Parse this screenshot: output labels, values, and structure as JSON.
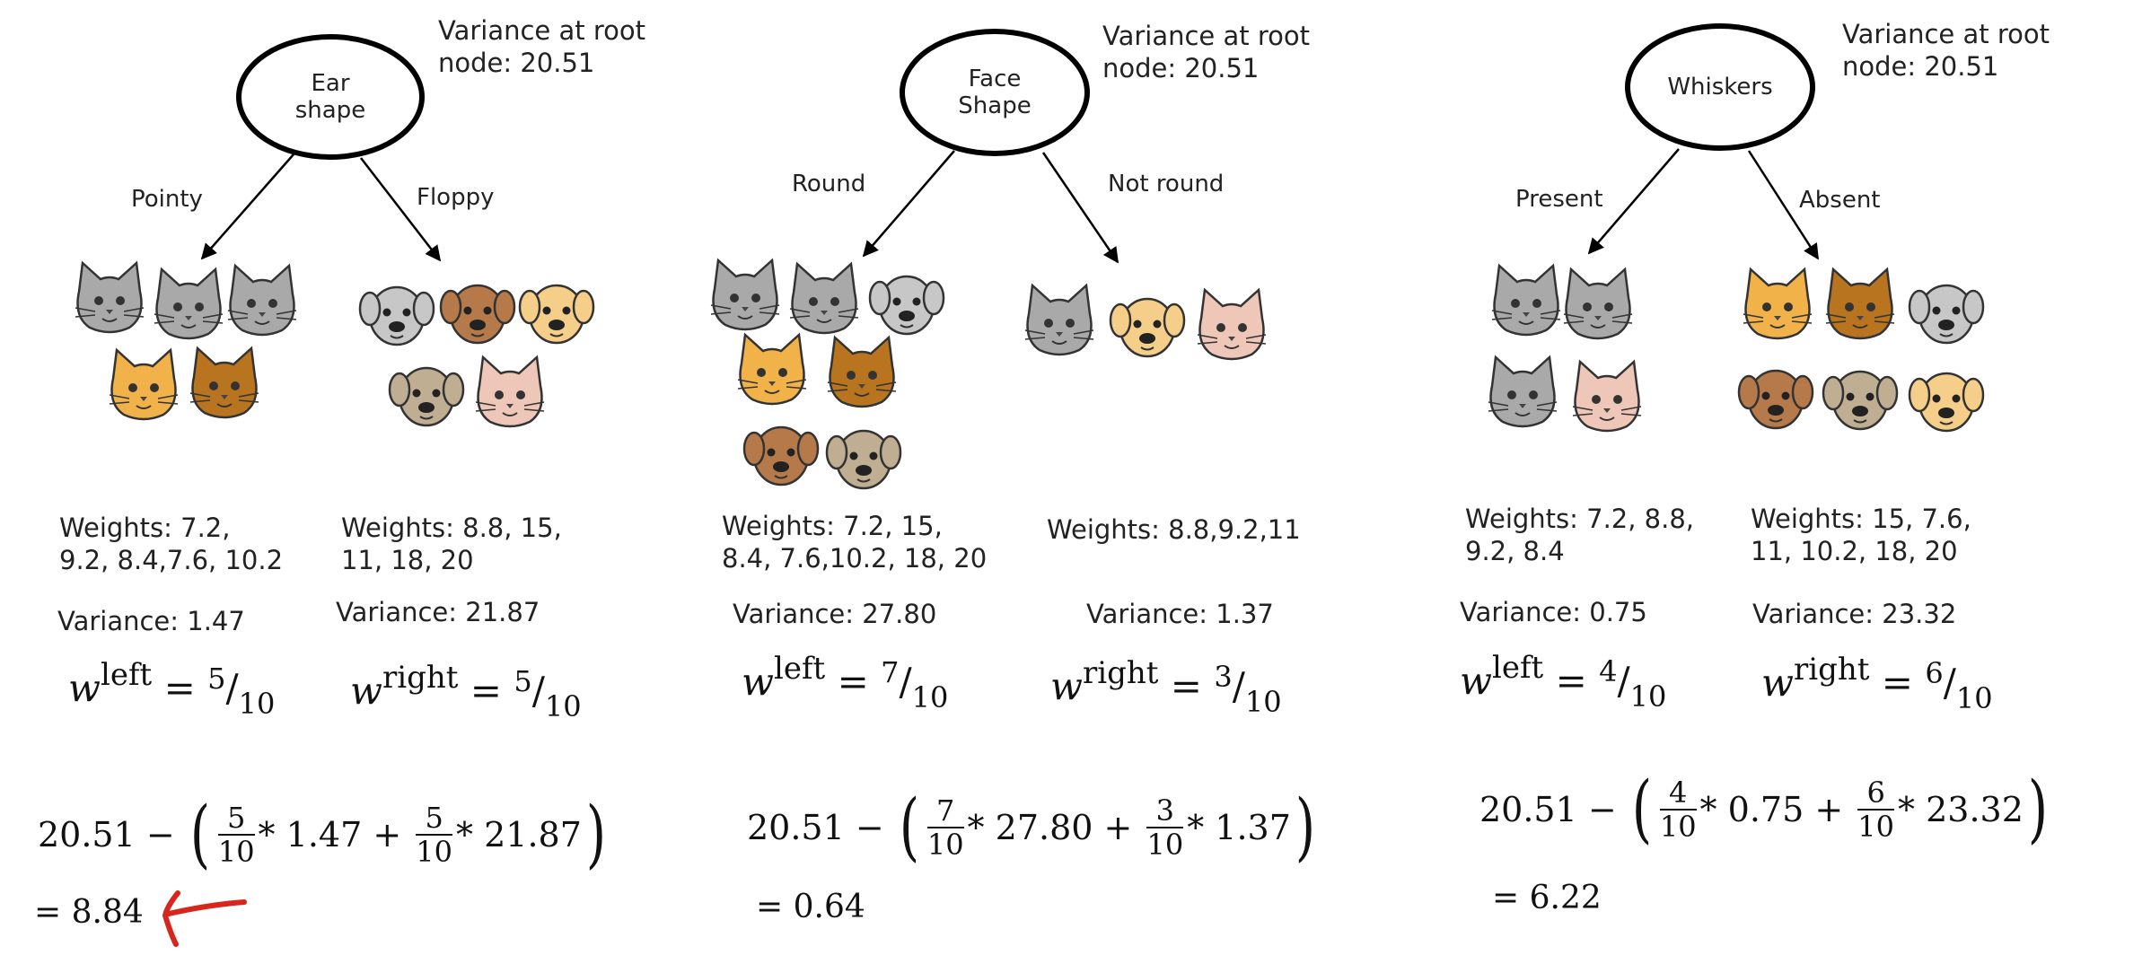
{
  "splits": [
    {
      "root_label": "Ear\nshape",
      "root_variance_label": "Variance at root\nnode: 20.51",
      "left_edge": "Pointy",
      "right_edge": "Floppy",
      "left_weights": "Weights: 7.2,\n9.2, 8.4,7.6, 10.2",
      "right_weights": "Weights: 8.8, 15,\n11, 18, 20",
      "left_variance": "Variance: 1.47",
      "right_variance": "Variance: 21.87",
      "w_left_label": "left",
      "w_right_label": "right",
      "w_left_num": "5",
      "w_left_den": "10",
      "w_right_num": "5",
      "w_right_den": "10",
      "root_value": "20.51",
      "left_frac_num": "5",
      "left_frac_den": "10",
      "left_var_value": "1.47",
      "right_frac_num": "5",
      "right_frac_den": "10",
      "right_var_value": "21.87",
      "result": "= 8.84"
    },
    {
      "root_label": "Face\nShape",
      "root_variance_label": "Variance at root\nnode: 20.51",
      "left_edge": "Round",
      "right_edge": "Not round",
      "left_weights": "Weights: 7.2, 15,\n8.4, 7.6,10.2, 18, 20",
      "right_weights": "Weights: 8.8,9.2,11",
      "left_variance": "Variance: 27.80",
      "right_variance": "Variance: 1.37",
      "w_left_label": "left",
      "w_right_label": "right",
      "w_left_num": "7",
      "w_left_den": "10",
      "w_right_num": "3",
      "w_right_den": "10",
      "root_value": "20.51",
      "left_frac_num": "7",
      "left_frac_den": "10",
      "left_var_value": "27.80",
      "right_frac_num": "3",
      "right_frac_den": "10",
      "right_var_value": "1.37",
      "result": "= 0.64"
    },
    {
      "root_label": "Whiskers",
      "root_variance_label": "Variance at root\nnode: 20.51",
      "left_edge": "Present",
      "right_edge": "Absent",
      "left_weights": "Weights: 7.2, 8.8,\n9.2, 8.4",
      "right_weights": "Weights: 15, 7.6,\n11, 10.2, 18, 20",
      "left_variance": "Variance: 0.75",
      "right_variance": "Variance: 23.32",
      "w_left_label": "left",
      "w_right_label": "right",
      "w_left_num": "4",
      "w_left_den": "10",
      "w_right_num": "6",
      "w_right_den": "10",
      "root_value": "20.51",
      "left_frac_num": "4",
      "left_frac_den": "10",
      "left_var_value": "0.75",
      "right_frac_num": "6",
      "right_frac_den": "10",
      "right_var_value": "23.32",
      "result": "= 6.22"
    }
  ],
  "symbols": {
    "w": "w",
    "equals": "=",
    "minus": "−",
    "times": "*",
    "plus": "+",
    "slash": "/",
    "lparen": "(",
    "rparen": ")"
  },
  "faces": [
    [
      "gray-cat",
      "gray-cat",
      "gray-cat",
      "orange-cat",
      "brown-cat",
      "gray-dog",
      "brown-dog",
      "tan-dog",
      "pug-dog",
      "pink-cat"
    ],
    [
      "gray-cat",
      "gray-cat",
      "gray-dog",
      "orange-cat",
      "brown-cat",
      "brown-dog",
      "pug-dog",
      "gray-cat",
      "tan-dog",
      "pink-cat"
    ],
    [
      "gray-cat",
      "gray-cat",
      "gray-cat",
      "pink-cat",
      "orange-cat",
      "brown-cat",
      "gray-dog",
      "brown-dog",
      "pug-dog",
      "tan-dog"
    ]
  ],
  "colors": {
    "arrow": "#000000",
    "highlight_arrow": "#d9261c"
  }
}
